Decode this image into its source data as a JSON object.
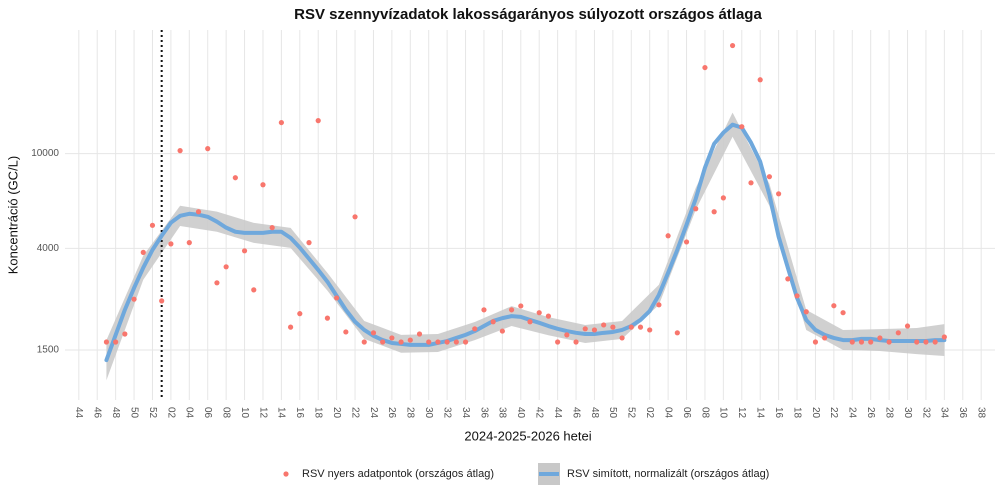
{
  "chart_data": {
    "type": "scatter",
    "title": "RSV szennyvízadatok lakosságarányos súlyozott országos átlaga",
    "x_label": "2024-2025-2026 hetei",
    "y_label": "Koncentráció (GC/L)",
    "ylog": true,
    "grid": true,
    "legend": "bottom",
    "xlim": [
      -1.5,
      99.5
    ],
    "ylim": [
      925,
      33000
    ],
    "yticks": [
      1500,
      4000,
      10000
    ],
    "xticks": [
      {
        "value": 0,
        "label": "44"
      },
      {
        "value": 2,
        "label": "46"
      },
      {
        "value": 4,
        "label": "48"
      },
      {
        "value": 6,
        "label": "50"
      },
      {
        "value": 8,
        "label": "52"
      },
      {
        "value": 10,
        "label": "02"
      },
      {
        "value": 12,
        "label": "04"
      },
      {
        "value": 14,
        "label": "06"
      },
      {
        "value": 16,
        "label": "08"
      },
      {
        "value": 18,
        "label": "10"
      },
      {
        "value": 20,
        "label": "12"
      },
      {
        "value": 22,
        "label": "14"
      },
      {
        "value": 24,
        "label": "16"
      },
      {
        "value": 26,
        "label": "18"
      },
      {
        "value": 28,
        "label": "20"
      },
      {
        "value": 30,
        "label": "22"
      },
      {
        "value": 32,
        "label": "24"
      },
      {
        "value": 34,
        "label": "26"
      },
      {
        "value": 36,
        "label": "28"
      },
      {
        "value": 38,
        "label": "30"
      },
      {
        "value": 40,
        "label": "32"
      },
      {
        "value": 42,
        "label": "34"
      },
      {
        "value": 44,
        "label": "36"
      },
      {
        "value": 46,
        "label": "38"
      },
      {
        "value": 48,
        "label": "40"
      },
      {
        "value": 50,
        "label": "42"
      },
      {
        "value": 52,
        "label": "44"
      },
      {
        "value": 54,
        "label": "46"
      },
      {
        "value": 56,
        "label": "48"
      },
      {
        "value": 58,
        "label": "50"
      },
      {
        "value": 60,
        "label": "52"
      },
      {
        "value": 62,
        "label": "02"
      },
      {
        "value": 64,
        "label": "04"
      },
      {
        "value": 66,
        "label": "06"
      },
      {
        "value": 68,
        "label": "08"
      },
      {
        "value": 70,
        "label": "10"
      },
      {
        "value": 72,
        "label": "12"
      },
      {
        "value": 74,
        "label": "14"
      },
      {
        "value": 76,
        "label": "16"
      },
      {
        "value": 78,
        "label": "18"
      },
      {
        "value": 80,
        "label": "20"
      },
      {
        "value": 82,
        "label": "22"
      },
      {
        "value": 84,
        "label": "24"
      },
      {
        "value": 86,
        "label": "26"
      },
      {
        "value": 88,
        "label": "28"
      },
      {
        "value": 90,
        "label": "30"
      },
      {
        "value": 92,
        "label": "32"
      },
      {
        "value": 94,
        "label": "34"
      },
      {
        "value": 96,
        "label": "36"
      },
      {
        "value": 98,
        "label": "38"
      }
    ],
    "vline_x": 9,
    "x": [
      3,
      4,
      5,
      6,
      7,
      8,
      9,
      10,
      11,
      12,
      13,
      14,
      15,
      16,
      17,
      18,
      19,
      20,
      21,
      22,
      23,
      24,
      25,
      26,
      27,
      28,
      29,
      30,
      31,
      32,
      33,
      34,
      35,
      36,
      37,
      38,
      39,
      40,
      41,
      42,
      43,
      44,
      45,
      46,
      47,
      48,
      49,
      50,
      51,
      52,
      53,
      54,
      55,
      56,
      57,
      58,
      59,
      60,
      61,
      62,
      63,
      64,
      65,
      66,
      67,
      68,
      69,
      70,
      71,
      72,
      73,
      74,
      75,
      76,
      77,
      78,
      79,
      80,
      81,
      82,
      83,
      84,
      85,
      86,
      87,
      88,
      89,
      90,
      91,
      92,
      93,
      94
    ],
    "series": [
      {
        "name": "RSV nyers adatpontok (országos átlag)",
        "color": "#f8766d",
        "mark": "point",
        "values": [
          1620,
          1620,
          1750,
          2450,
          3850,
          5000,
          2410,
          4180,
          10290,
          4230,
          5700,
          10490,
          2870,
          3350,
          7920,
          3910,
          2680,
          7400,
          4890,
          13490,
          1870,
          2130,
          4230,
          13750,
          2040,
          2480,
          1785,
          5430,
          1620,
          1770,
          1620,
          1685,
          1620,
          1650,
          1750,
          1620,
          1620,
          1620,
          1620,
          1620,
          1840,
          2210,
          1970,
          1800,
          2210,
          2295,
          1970,
          2150,
          2080,
          1620,
          1735,
          1620,
          1840,
          1820,
          1910,
          1870,
          1685,
          1870,
          1870,
          1820,
          2320,
          4520,
          1770,
          4260,
          5870,
          22950,
          5700,
          6520,
          28400,
          12970,
          7540,
          20400,
          8000,
          6780,
          2980,
          2530,
          2170,
          1620,
          1685,
          2300,
          2150,
          1620,
          1620,
          1620,
          1685,
          1620,
          1770,
          1890,
          1620,
          1620,
          1620,
          1700
        ]
      },
      {
        "name": "RSV simított, normalizált (országos átlag)",
        "color": "#6fa8dc",
        "mark": "line",
        "values": [
          1360,
          1735,
          2210,
          2730,
          3320,
          3945,
          4520,
          5130,
          5480,
          5590,
          5540,
          5430,
          5180,
          4890,
          4700,
          4650,
          4650,
          4650,
          4700,
          4700,
          4430,
          4030,
          3620,
          3250,
          2900,
          2530,
          2210,
          1970,
          1820,
          1720,
          1650,
          1605,
          1590,
          1575,
          1575,
          1575,
          1605,
          1635,
          1685,
          1735,
          1800,
          1890,
          1985,
          2040,
          2080,
          2065,
          2005,
          1950,
          1890,
          1840,
          1800,
          1770,
          1750,
          1750,
          1770,
          1785,
          1820,
          1890,
          2005,
          2185,
          2555,
          3160,
          3945,
          5025,
          6465,
          8725,
          11000,
          12240,
          13220,
          12850,
          11120,
          9250,
          6720,
          4480,
          3320,
          2480,
          2005,
          1820,
          1735,
          1685,
          1650,
          1650,
          1670,
          1670,
          1650,
          1635,
          1635,
          1635,
          1635,
          1635,
          1650,
          1650
        ]
      }
    ],
    "ribbon": {
      "color": "#c8c8c8",
      "x": [
        3,
        7,
        11,
        15,
        19,
        23,
        27,
        31,
        35,
        39,
        43,
        47,
        51,
        55,
        59,
        63,
        67,
        71,
        75,
        79,
        83,
        87,
        91,
        94
      ],
      "lower": [
        1120,
        2955,
        4970,
        4700,
        4220,
        4020,
        2660,
        1670,
        1460,
        1470,
        1650,
        1890,
        1730,
        1605,
        1670,
        2320,
        5810,
        11770,
        6040,
        1820,
        1500,
        1485,
        1440,
        1415
      ],
      "upper": [
        1650,
        3730,
        6040,
        5710,
        5120,
        4880,
        3160,
        1985,
        1735,
        1750,
        1965,
        2290,
        2060,
        1910,
        1985,
        2815,
        7190,
        14850,
        7470,
        2210,
        1820,
        1835,
        1855,
        1925
      ]
    }
  }
}
